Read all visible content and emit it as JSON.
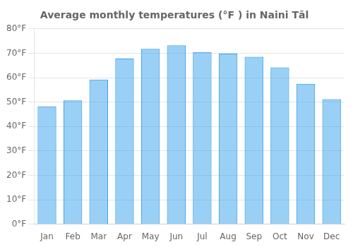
{
  "chart_data": {
    "type": "bar",
    "title": "Average monthly temperatures (°F ) in Naini Tāl",
    "categories": [
      "Jan",
      "Feb",
      "Mar",
      "Apr",
      "May",
      "Jun",
      "Jul",
      "Aug",
      "Sep",
      "Oct",
      "Nov",
      "Dec"
    ],
    "values": [
      48.2,
      50.7,
      59.2,
      67.8,
      71.8,
      73.2,
      70.5,
      69.8,
      68.5,
      64.2,
      57.5,
      51.2
    ],
    "ylim": [
      0,
      80
    ],
    "yticks": [
      {
        "value": 0,
        "label": "0°F"
      },
      {
        "value": 10,
        "label": "10°F"
      },
      {
        "value": 20,
        "label": "20°F"
      },
      {
        "value": 30,
        "label": "30°F"
      },
      {
        "value": 40,
        "label": "40°F"
      },
      {
        "value": 50,
        "label": "50°F"
      },
      {
        "value": 60,
        "label": "60°F"
      },
      {
        "value": 70,
        "label": "70°F"
      },
      {
        "value": 80,
        "label": "80°F"
      }
    ],
    "grid": true
  }
}
